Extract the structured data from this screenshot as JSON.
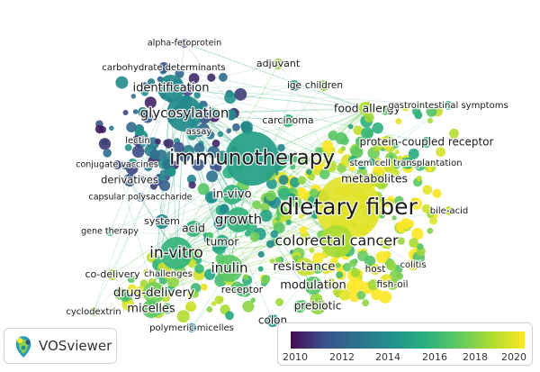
{
  "tool_name": "VOSviewer",
  "color_scale": {
    "ticks": [
      "2010",
      "2012",
      "2014",
      "2016",
      "2018",
      "2020"
    ],
    "colors": [
      "#440d54",
      "#3b528b",
      "#2c728e",
      "#21918c",
      "#28ae80",
      "#5ec962",
      "#addc30",
      "#fde725"
    ]
  },
  "terms": [
    {
      "id": "alpha_fetoprotein",
      "label": "alpha-fetoprotein"
    },
    {
      "id": "carbohydrate_determinants",
      "label": "carbohydrate determinants"
    },
    {
      "id": "adjuvant",
      "label": "adjuvant"
    },
    {
      "id": "ige",
      "label": "ige"
    },
    {
      "id": "children",
      "label": "children"
    },
    {
      "id": "identification",
      "label": "identification"
    },
    {
      "id": "glycosylation",
      "label": "glycosylation"
    },
    {
      "id": "carcinoma",
      "label": "carcinoma"
    },
    {
      "id": "food_allergy",
      "label": "food allergy"
    },
    {
      "id": "gastrointestinal_symptoms",
      "label": "gastrointestinal symptoms"
    },
    {
      "id": "lectin",
      "label": "lectin"
    },
    {
      "id": "assay",
      "label": "assay"
    },
    {
      "id": "protein_coupled_receptor",
      "label": "protein-coupled receptor"
    },
    {
      "id": "conjugate_vaccines",
      "label": "conjugate vaccines"
    },
    {
      "id": "immunotherapy",
      "label": "immunotherapy"
    },
    {
      "id": "stem_cell_transplantation",
      "label": "stem cell transplantation"
    },
    {
      "id": "derivatives",
      "label": "derivatives"
    },
    {
      "id": "metabolites",
      "label": "metabolites"
    },
    {
      "id": "in_vivo",
      "label": "in-vivo"
    },
    {
      "id": "capsular_polysaccharide",
      "label": "capsular polysaccharide"
    },
    {
      "id": "dietary_fiber",
      "label": "dietary fiber"
    },
    {
      "id": "system",
      "label": "system"
    },
    {
      "id": "growth",
      "label": "growth"
    },
    {
      "id": "bile_acid",
      "label": "bile-acid"
    },
    {
      "id": "acid",
      "label": "acid"
    },
    {
      "id": "gene_therapy",
      "label": "gene therapy"
    },
    {
      "id": "tumor",
      "label": "tumor"
    },
    {
      "id": "colorectal_cancer",
      "label": "colorectal cancer"
    },
    {
      "id": "in_vitro",
      "label": "in-vitro"
    },
    {
      "id": "inulin",
      "label": "inulin"
    },
    {
      "id": "resistance",
      "label": "resistance"
    },
    {
      "id": "colitis",
      "label": "colitis"
    },
    {
      "id": "co_delivery",
      "label": "co-delivery"
    },
    {
      "id": "challenges",
      "label": "challenges"
    },
    {
      "id": "host",
      "label": "host"
    },
    {
      "id": "modulation",
      "label": "modulation"
    },
    {
      "id": "fish_oil",
      "label": "fish-oil"
    },
    {
      "id": "drug_delivery",
      "label": "drug-delivery"
    },
    {
      "id": "receptor",
      "label": "receptor"
    },
    {
      "id": "micelles",
      "label": "micelles"
    },
    {
      "id": "prebiotic",
      "label": "prebiotic"
    },
    {
      "id": "cyclodextrin",
      "label": "cyclodextrin"
    },
    {
      "id": "colon",
      "label": "colon"
    },
    {
      "id": "polymeric_micelles",
      "label": "polymeric micelles"
    }
  ]
}
